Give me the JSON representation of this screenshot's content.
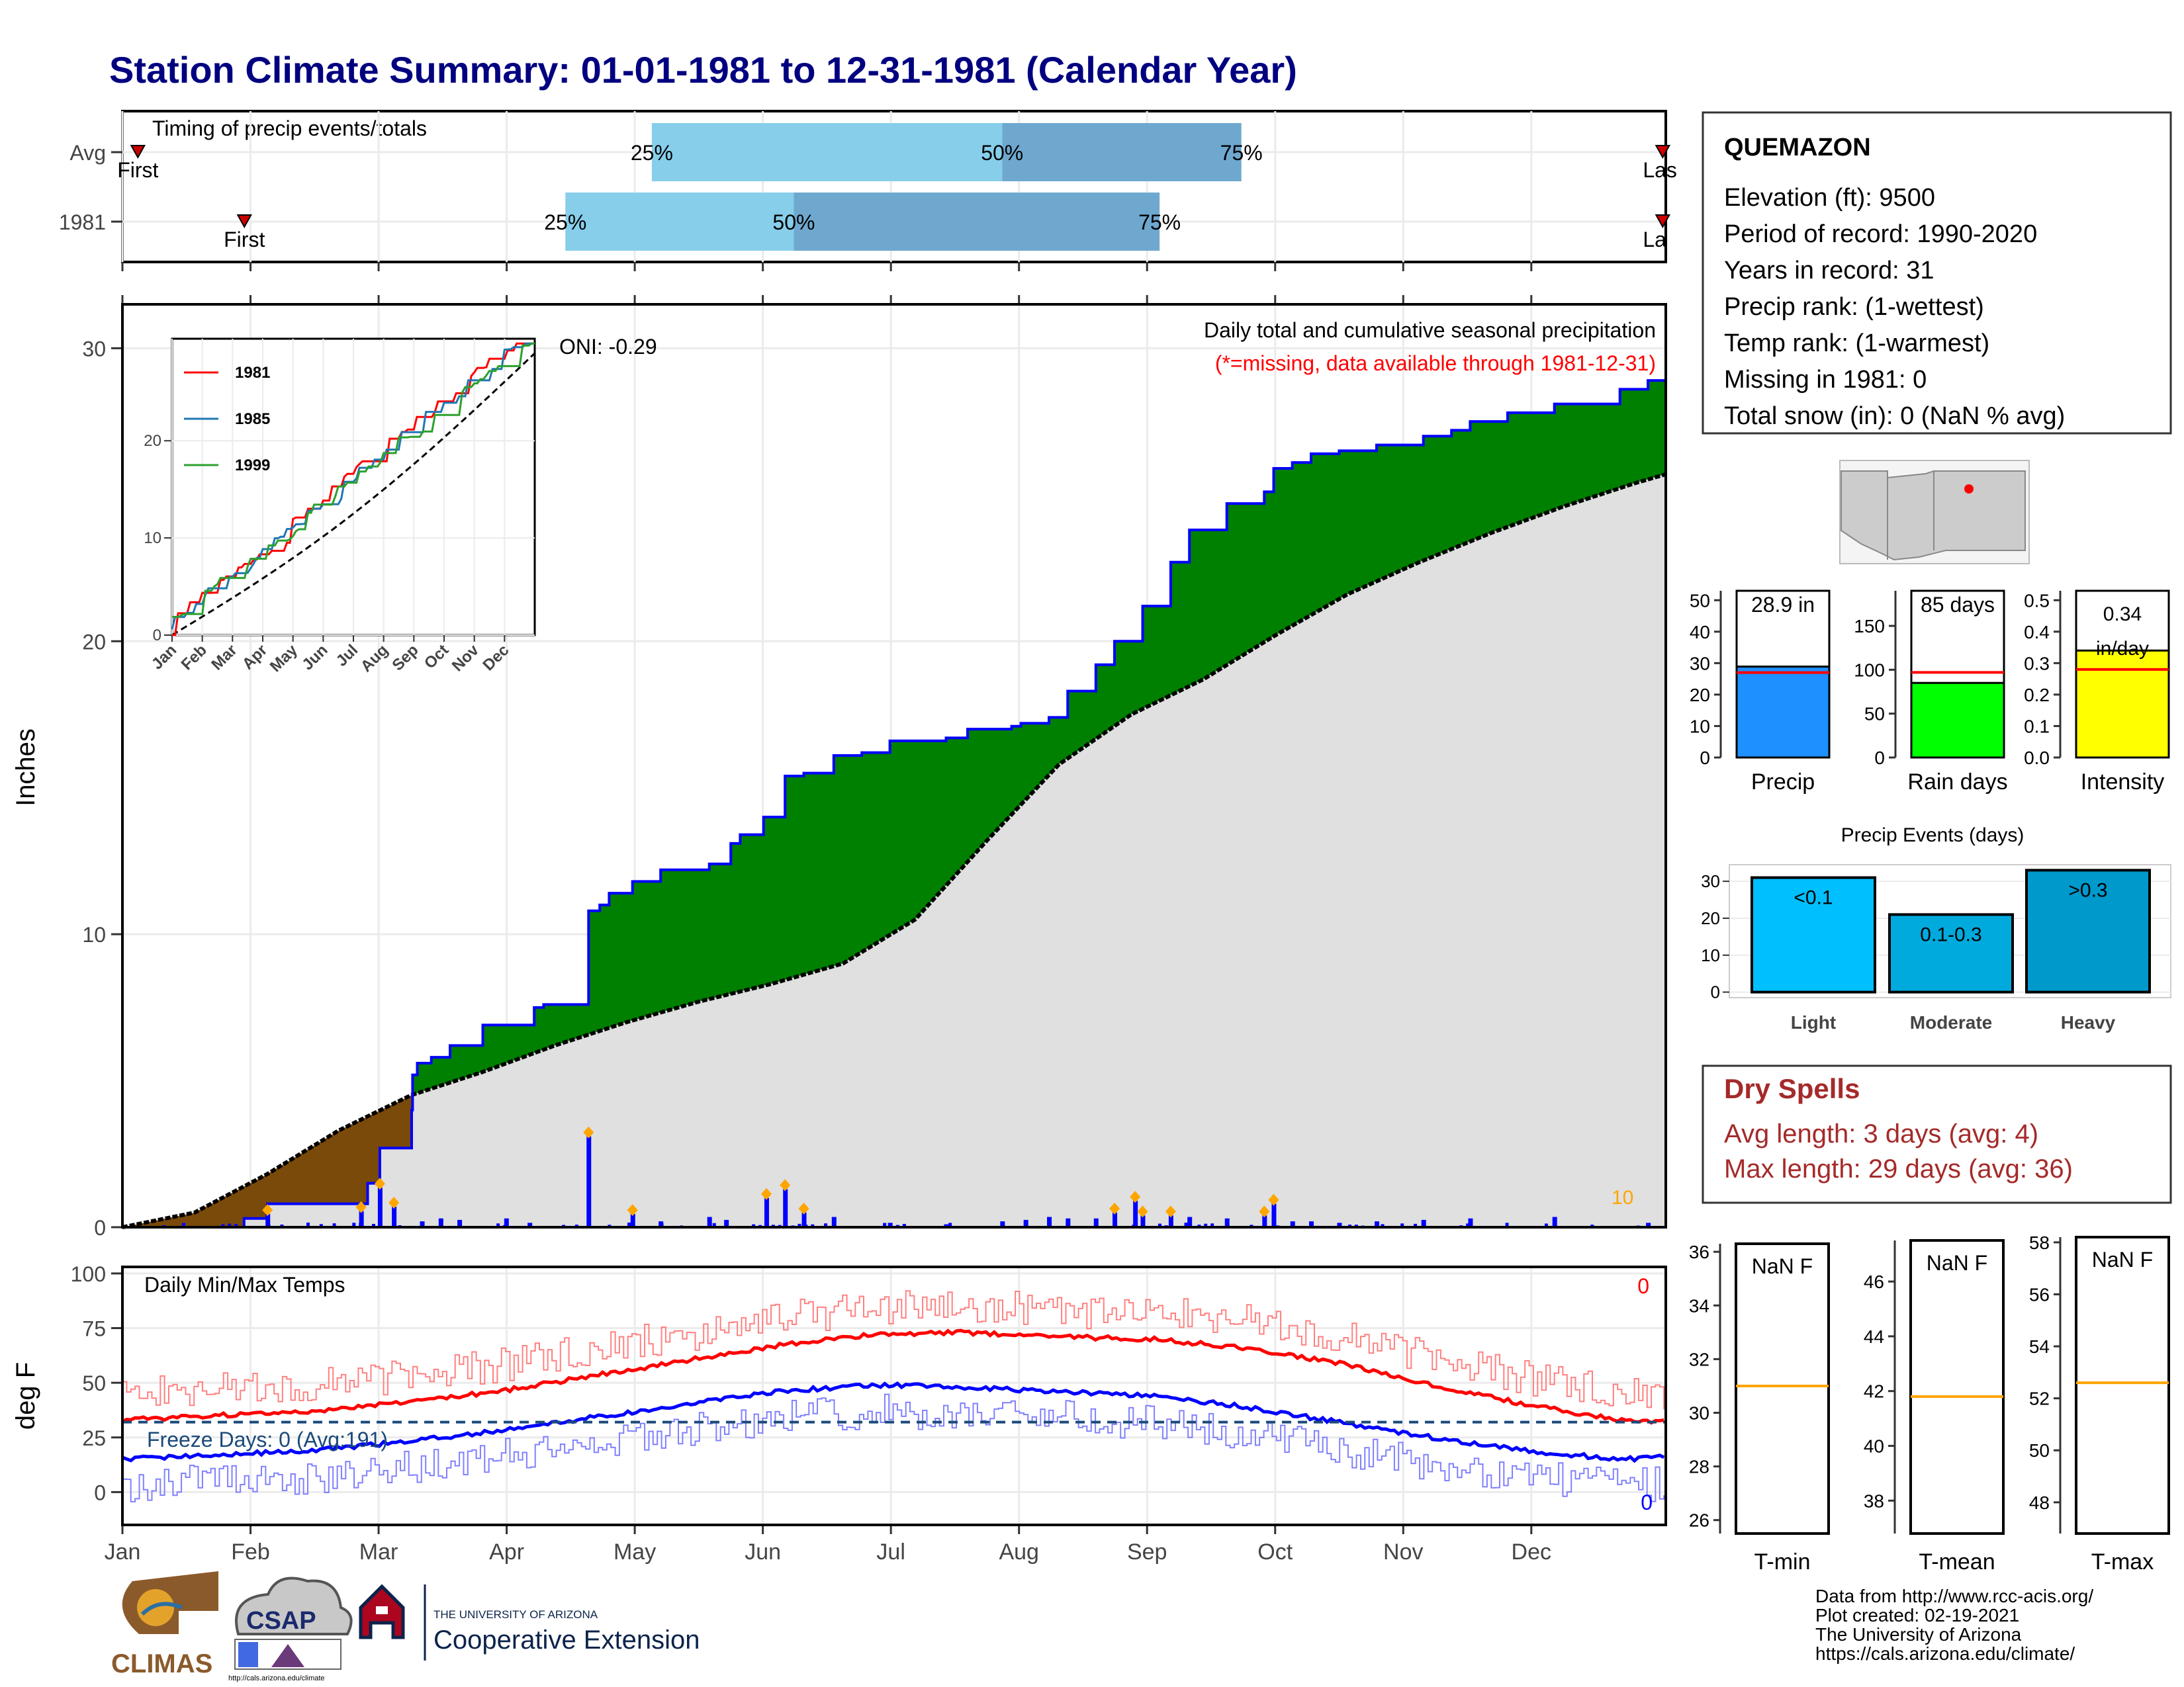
{
  "title": "Station Climate Summary: 01-01-1981 to 12-31-1981 (Calendar Year)",
  "colors": {
    "title": "#000080",
    "green": "#008000",
    "brown": "#7a4a0a",
    "grey": "#e0e0e0",
    "blue": "#0000ff",
    "red": "#ff0000",
    "orange": "#ffa500",
    "light_blue": "#87ceeb",
    "mid_blue": "#6fa8cf",
    "dry_red": "#a52a2a"
  },
  "months": [
    "Jan",
    "Feb",
    "Mar",
    "Apr",
    "May",
    "Jun",
    "Jul",
    "Aug",
    "Sep",
    "Oct",
    "Nov",
    "Dec"
  ],
  "timing": {
    "label": "Timing of precip events/totals",
    "rows": [
      {
        "label": "Avg",
        "first": "First",
        "last": "Las",
        "q25": 0.343,
        "q50": 0.57,
        "q75": 0.725
      },
      {
        "label": "1981",
        "first": "First",
        "last": "La",
        "q25": 0.287,
        "q50": 0.435,
        "q75": 0.672
      }
    ],
    "first_pos": [
      0.01,
      0.079
    ],
    "last_pos": [
      0.998,
      0.998
    ],
    "pct_labels": [
      "25%",
      "50%",
      "75%"
    ]
  },
  "main_chart": {
    "ylabel": "Inches",
    "yticks": [
      0,
      10,
      20,
      30
    ],
    "ylim": [
      0,
      31.5
    ],
    "heading": "Daily total and cumulative seasonal precipitation",
    "note": "(*=missing, data available through 1981-12-31)",
    "oni": "ONI: -0.29",
    "count_label": "10",
    "observed_cumulative": {
      "type": "step",
      "points": [
        [
          0,
          0
        ],
        [
          1.3,
          0.3
        ],
        [
          1.55,
          0.8
        ],
        [
          2.5,
          0.8
        ],
        [
          2.62,
          1.5
        ],
        [
          2.75,
          2.7
        ],
        [
          3.09,
          4.0
        ],
        [
          3.1,
          5.2
        ],
        [
          3.15,
          5.6
        ],
        [
          3.3,
          5.8
        ],
        [
          3.5,
          6.2
        ],
        [
          3.85,
          6.9
        ],
        [
          4.4,
          7.5
        ],
        [
          4.5,
          7.6
        ],
        [
          4.98,
          10.8
        ],
        [
          5.1,
          11.0
        ],
        [
          5.2,
          11.4
        ],
        [
          5.45,
          11.8
        ],
        [
          5.75,
          12.2
        ],
        [
          6.27,
          12.4
        ],
        [
          6.5,
          13.1
        ],
        [
          6.6,
          13.4
        ],
        [
          6.85,
          14.0
        ],
        [
          7.08,
          15.4
        ],
        [
          7.28,
          15.5
        ],
        [
          7.6,
          16.1
        ],
        [
          7.9,
          16.2
        ],
        [
          8.2,
          16.6
        ],
        [
          8.8,
          16.7
        ],
        [
          9.03,
          17.0
        ],
        [
          9.5,
          17.1
        ],
        [
          9.6,
          17.2
        ],
        [
          9.9,
          17.4
        ],
        [
          10.1,
          18.3
        ],
        [
          10.4,
          19.2
        ],
        [
          10.6,
          20.0
        ],
        [
          10.9,
          21.2
        ],
        [
          11.2,
          22.7
        ],
        [
          11.4,
          23.8
        ],
        [
          11.8,
          24.7
        ],
        [
          12.2,
          25.1
        ],
        [
          12.3,
          25.9
        ],
        [
          12.5,
          26.1
        ],
        [
          12.7,
          26.4
        ],
        [
          13.0,
          26.5
        ],
        [
          13.4,
          26.7
        ],
        [
          13.9,
          27.0
        ],
        [
          14.2,
          27.2
        ],
        [
          14.4,
          27.5
        ],
        [
          14.8,
          27.8
        ],
        [
          15.3,
          28.1
        ],
        [
          16.0,
          28.6
        ],
        [
          16.3,
          28.9
        ],
        [
          16.49,
          28.9
        ]
      ]
    },
    "average_cumulative": {
      "type": "line",
      "points": [
        [
          0,
          0
        ],
        [
          1.0,
          0.5
        ],
        [
          2.0,
          1.8
        ],
        [
          3.0,
          3.3
        ],
        [
          4.0,
          4.5
        ],
        [
          5.0,
          5.3
        ],
        [
          6.0,
          6.2
        ],
        [
          7.0,
          7.0
        ],
        [
          8.0,
          7.7
        ],
        [
          9.0,
          8.3
        ],
        [
          10.0,
          9.0
        ],
        [
          11.0,
          10.5
        ],
        [
          12.0,
          13.2
        ],
        [
          13.0,
          15.8
        ],
        [
          14.0,
          17.5
        ],
        [
          15.0,
          18.7
        ],
        [
          16.0,
          20.2
        ],
        [
          17.0,
          21.6
        ],
        [
          18.0,
          22.7
        ],
        [
          19.0,
          23.7
        ],
        [
          20.0,
          24.6
        ],
        [
          21.0,
          25.4
        ],
        [
          21.42,
          25.7
        ]
      ]
    },
    "daily_bars": [
      [
        1.55,
        0.45
      ],
      [
        2.55,
        0.55
      ],
      [
        2.75,
        1.35
      ],
      [
        2.9,
        0.7
      ],
      [
        3.2,
        0.2
      ],
      [
        3.4,
        0.3
      ],
      [
        3.6,
        0.25
      ],
      [
        4.1,
        0.3
      ],
      [
        4.35,
        0.15
      ],
      [
        4.98,
        3.1
      ],
      [
        5.45,
        0.45
      ],
      [
        5.75,
        0.2
      ],
      [
        6.27,
        0.35
      ],
      [
        6.45,
        0.25
      ],
      [
        6.88,
        1.0
      ],
      [
        7.08,
        1.3
      ],
      [
        7.28,
        0.5
      ],
      [
        7.6,
        0.35
      ],
      [
        8.2,
        0.15
      ],
      [
        8.8,
        0.1
      ],
      [
        9.4,
        0.2
      ],
      [
        9.65,
        0.25
      ],
      [
        9.9,
        0.35
      ],
      [
        10.1,
        0.3
      ],
      [
        10.4,
        0.3
      ],
      [
        10.6,
        0.5
      ],
      [
        10.82,
        0.9
      ],
      [
        10.9,
        0.4
      ],
      [
        11.2,
        0.4
      ],
      [
        11.4,
        0.35
      ],
      [
        11.8,
        0.3
      ],
      [
        12.2,
        0.4
      ],
      [
        12.3,
        0.8
      ],
      [
        12.5,
        0.2
      ],
      [
        12.7,
        0.2
      ],
      [
        13.0,
        0.15
      ],
      [
        13.4,
        0.2
      ],
      [
        13.9,
        0.25
      ],
      [
        14.4,
        0.3
      ],
      [
        15.3,
        0.35
      ],
      [
        16.3,
        0.15
      ]
    ]
  },
  "inset": {
    "yticks": [
      0,
      10,
      20
    ],
    "series": [
      {
        "name": "1981",
        "color": "#ff0000"
      },
      {
        "name": "1985",
        "color": "#1f77b4"
      },
      {
        "name": "1999",
        "color": "#2ca02c"
      }
    ]
  },
  "temps": {
    "label": "Daily Min/Max Temps",
    "ylabel": "deg F",
    "yticks": [
      0,
      25,
      50,
      75,
      100
    ],
    "freeze": "Freeze Days: 0 (Avg:191)",
    "count_top": "0",
    "count_bottom": "0",
    "avg_max": [
      [
        0,
        33
      ],
      [
        1,
        35
      ],
      [
        2,
        37
      ],
      [
        3,
        41
      ],
      [
        4,
        46
      ],
      [
        5,
        53
      ],
      [
        6,
        60
      ],
      [
        7,
        67
      ],
      [
        8,
        72
      ],
      [
        9,
        73
      ],
      [
        10,
        71
      ],
      [
        11,
        70
      ],
      [
        12,
        66
      ],
      [
        13,
        59
      ],
      [
        14,
        49
      ],
      [
        15,
        40
      ],
      [
        16,
        33
      ],
      [
        16.49,
        32
      ]
    ],
    "avg_min": [
      [
        0,
        15
      ],
      [
        1,
        17
      ],
      [
        2,
        19
      ],
      [
        3,
        23
      ],
      [
        4,
        28
      ],
      [
        5,
        34
      ],
      [
        6,
        40
      ],
      [
        7,
        46
      ],
      [
        8,
        49
      ],
      [
        9,
        48
      ],
      [
        10,
        46
      ],
      [
        11,
        44
      ],
      [
        12,
        39
      ],
      [
        13,
        32
      ],
      [
        14,
        25
      ],
      [
        15,
        19
      ],
      [
        16,
        15
      ],
      [
        16.49,
        16
      ]
    ]
  },
  "station": {
    "name": "QUEMAZON",
    "lines": [
      "Elevation (ft): 9500",
      "Period of record: 1990-2020",
      "Years in record: 31",
      "Precip rank:  (1-wettest)",
      "Temp rank:  (1-warmest)",
      "Missing in 1981: 0",
      "Total snow (in): 0 (NaN % avg)"
    ]
  },
  "small_bars": [
    {
      "name": "Precip",
      "label": "28.9 in",
      "value": 28.9,
      "avg": 27,
      "ymax": 53,
      "yticks": [
        0,
        10,
        20,
        30,
        40,
        50
      ],
      "color": "#1e90ff"
    },
    {
      "name": "Rain days",
      "label": "85 days",
      "value": 85,
      "avg": 97,
      "ymax": 190,
      "yticks": [
        0,
        50,
        100,
        150
      ],
      "color": "#00ff00"
    },
    {
      "name": "Intensity",
      "label": "0.34 in/day",
      "label_line1": "0.34",
      "label_line2": "in/day",
      "value": 0.34,
      "avg": 0.28,
      "ymax": 0.53,
      "yticks": [
        "0.0",
        "0.1",
        "0.2",
        "0.3",
        "0.4",
        "0.5"
      ],
      "color": "#ffff00"
    }
  ],
  "precip_events": {
    "title": "Precip Events (days)",
    "yticks": [
      0,
      10,
      20,
      30
    ],
    "bars": [
      {
        "category": "Light",
        "label": "<0.1",
        "value": 31,
        "color": "#00bfff"
      },
      {
        "category": "Moderate",
        "label": "0.1-0.3",
        "value": 21,
        "color": "#00aadd"
      },
      {
        "category": "Heavy",
        "label": ">0.3",
        "value": 33,
        "color": "#0099cc"
      }
    ]
  },
  "dry_spells": {
    "title": "Dry Spells",
    "avg_line": "Avg length: 3 days (avg: 4)",
    "max_line": "Max length: 29 days (avg: 36)"
  },
  "temp_boxes": [
    {
      "name": "T-min",
      "label": "NaN F",
      "yticks": [
        26,
        28,
        30,
        32,
        34,
        36
      ],
      "ylim": [
        25.5,
        36.3
      ],
      "avg": 31
    },
    {
      "name": "T-mean",
      "label": "NaN F",
      "yticks": [
        38,
        40,
        42,
        44,
        46
      ],
      "ylim": [
        36.8,
        47.5
      ],
      "avg": 41.8
    },
    {
      "name": "T-max",
      "label": "NaN F",
      "yticks": [
        48,
        50,
        52,
        54,
        56,
        58
      ],
      "ylim": [
        46.8,
        58.2
      ],
      "avg": 52.6
    }
  ],
  "footer": {
    "lines": [
      "Data from http://www.rcc-acis.org/",
      "Plot created: 02-19-2021",
      "The University of Arizona",
      "https://cals.arizona.edu/climate/"
    ],
    "climas": "CLIMAS",
    "csap": "CSAP",
    "csap_url": "http://cals.arizona.edu/climate",
    "ua_line1": "THE UNIVERSITY OF ARIZONA",
    "ua_line2": "Cooperative Extension"
  }
}
